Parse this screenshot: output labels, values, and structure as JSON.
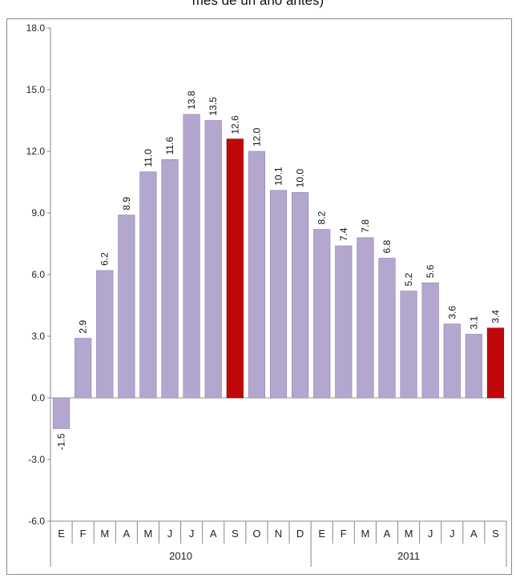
{
  "title": "mes de un año antes)",
  "colors": {
    "bar": "#b3a7cf",
    "highlight": "#c0080a"
  },
  "chart_data": {
    "type": "bar",
    "title": "mes de un año antes)",
    "xlabel": "",
    "ylabel": "",
    "ylim": [
      -6.0,
      18.0
    ],
    "yticks": [
      "18.0",
      "15.0",
      "12.0",
      "9.0",
      "6.0",
      "3.0",
      "0.0",
      "-3.0",
      "-6.0"
    ],
    "categories": [
      "E",
      "F",
      "M",
      "A",
      "M",
      "J",
      "J",
      "A",
      "S",
      "O",
      "N",
      "D",
      "E",
      "F",
      "M",
      "A",
      "M",
      "J",
      "J",
      "A",
      "S"
    ],
    "groups": [
      {
        "label": "2010",
        "count": 12
      },
      {
        "label": "2011",
        "count": 9
      }
    ],
    "values": [
      -1.5,
      2.9,
      6.2,
      8.9,
      11.0,
      11.6,
      13.8,
      13.5,
      12.6,
      12.0,
      10.1,
      10.0,
      8.2,
      7.4,
      7.8,
      6.8,
      5.2,
      5.6,
      3.6,
      3.1,
      3.4
    ],
    "data_labels": [
      "-1.5",
      "2.9",
      "6.2",
      "8.9",
      "11.0",
      "11.6",
      "13.8",
      "13.5",
      "12.6",
      "12.0",
      "10.1",
      "10.0",
      "8.2",
      "7.4",
      "7.8",
      "6.8",
      "5.2",
      "5.6",
      "3.6",
      "3.1",
      "3.4"
    ],
    "highlighted": [
      8,
      20
    ],
    "grid": false,
    "legend": "none"
  }
}
